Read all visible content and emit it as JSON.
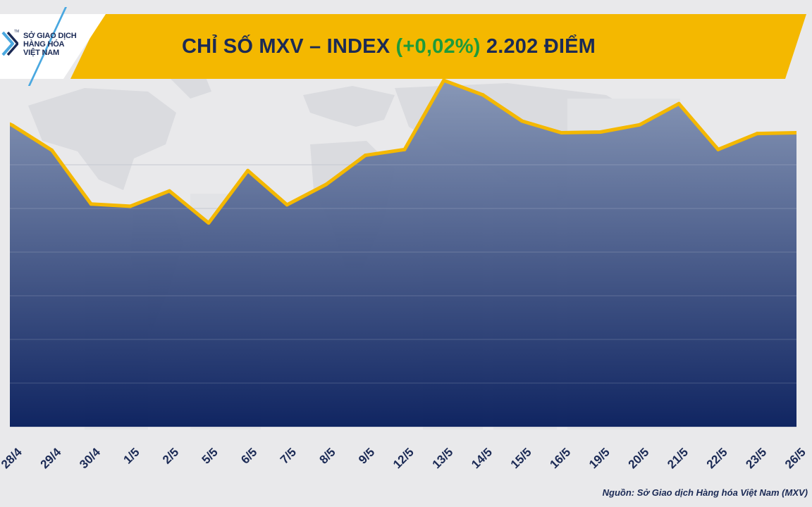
{
  "brand": {
    "logo_lines": [
      "SỞ GIAO DỊCH",
      "HÀNG HÓA",
      "VIỆT NAM"
    ],
    "tm": "TM",
    "navy": "#1b2a55",
    "accent_blue": "#4aa8e0",
    "banner_yellow": "#f4b800",
    "positive_green": "#1e9b3a"
  },
  "header": {
    "title_prefix": "CHỈ SỐ MXV – INDEX",
    "change": "(+0,02%)",
    "value": "2.202 ĐIỂM"
  },
  "chart_data": {
    "type": "area",
    "categories": [
      "28/4",
      "29/4",
      "30/4",
      "1/5",
      "2/5",
      "5/5",
      "6/5",
      "7/5",
      "8/5",
      "9/5",
      "12/5",
      "13/5",
      "14/5",
      "15/5",
      "16/5",
      "19/5",
      "20/5",
      "21/5",
      "22/5",
      "23/5",
      "26/5"
    ],
    "series": [
      {
        "values": [
          2207.0,
          2190.0,
          2153.0,
          2151.5,
          2162.0,
          2140.0,
          2176.0,
          2152.5,
          2166.5,
          2186.5,
          2190.5,
          2238.0,
          2228.0,
          2210.0,
          2202.0,
          2202.5,
          2207.5,
          2222.0,
          2190.5,
          2201.5,
          2202.0
        ]
      }
    ],
    "ylim": [
      2000,
      2240
    ],
    "grid": true,
    "y_tick_labels_visible": false,
    "line_color": "#f4b800",
    "fill_top_color": "#8595b5",
    "fill_bottom_color": "#071d5c"
  },
  "footer": {
    "source": "Nguồn: Sở Giao dịch Hàng hóa Việt Nam (MXV)"
  }
}
